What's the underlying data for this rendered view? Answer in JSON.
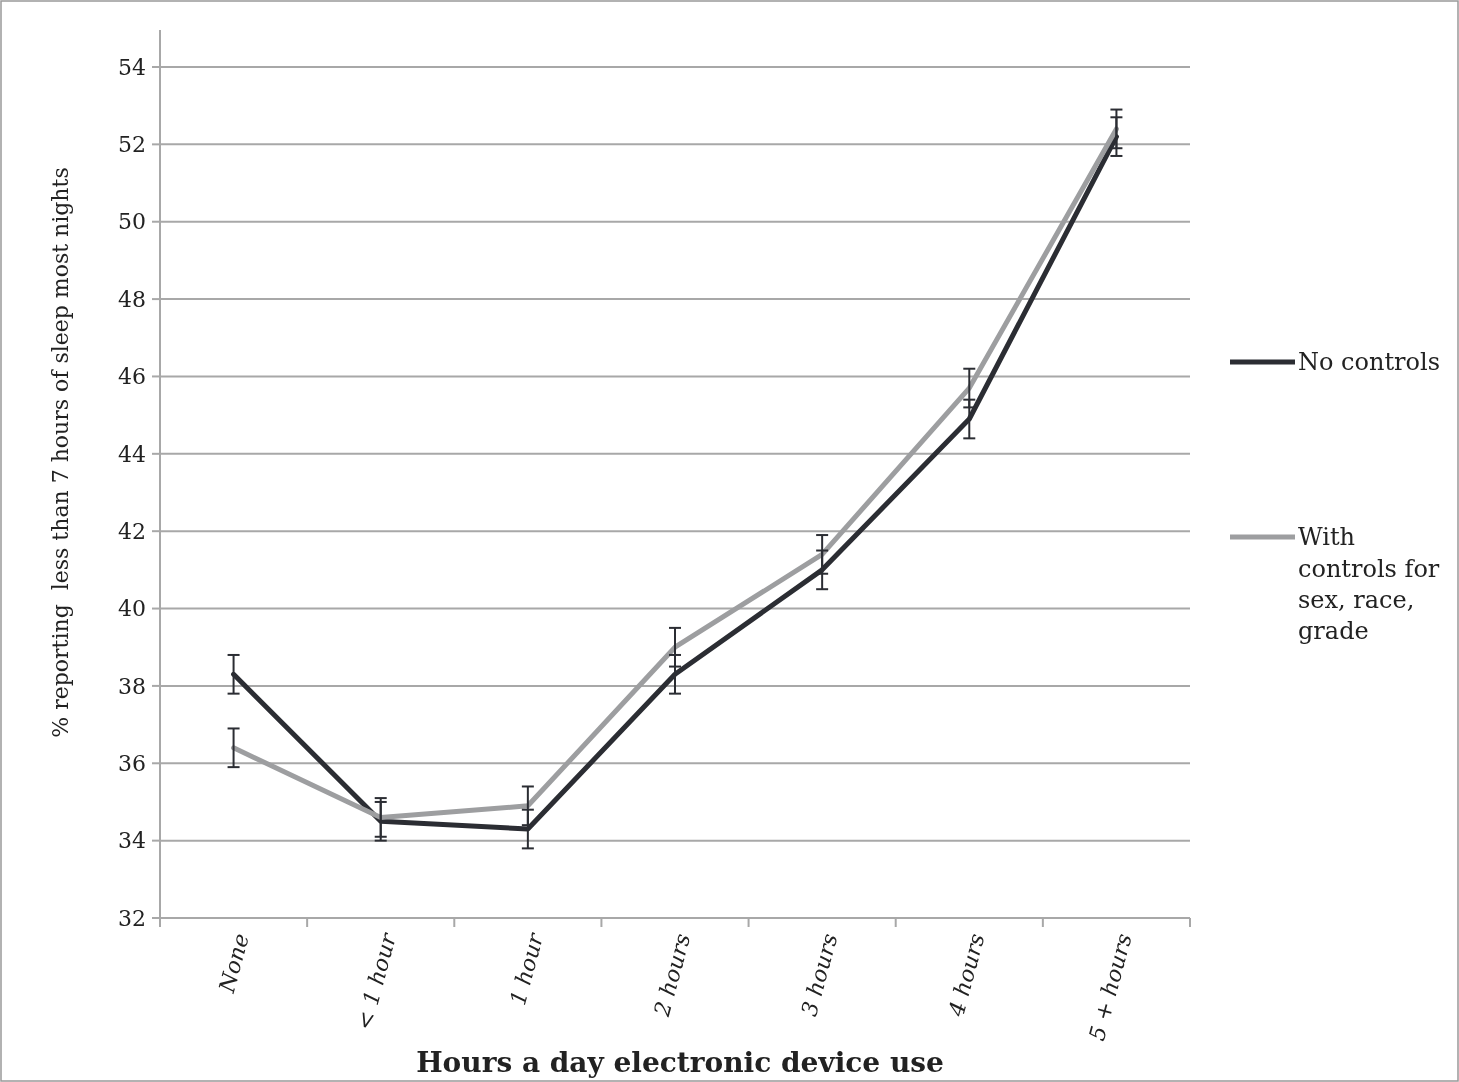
{
  "chart_data": {
    "type": "line",
    "xlabel": "Hours a day electronic device use",
    "ylabel": "% reporting  less than 7 hours of sleep most nights",
    "categories": [
      "None",
      "< 1 hour",
      "1 hour",
      "2 hours",
      "3 hours",
      "4 hours",
      "5 + hours"
    ],
    "series": [
      {
        "name": "No controls",
        "color": "#2b2d33",
        "values": [
          38.3,
          34.5,
          34.3,
          38.3,
          41.0,
          44.9,
          52.2
        ],
        "errors": [
          0.5,
          0.5,
          0.5,
          0.5,
          0.5,
          0.5,
          0.5
        ]
      },
      {
        "name": "With controls for sex, race, grade",
        "color": "#9d9ea0",
        "values": [
          36.4,
          34.6,
          34.9,
          39.0,
          41.4,
          45.7,
          52.4
        ],
        "errors": [
          0.5,
          0.5,
          0.5,
          0.5,
          0.5,
          0.5,
          0.5
        ]
      }
    ],
    "ylim": [
      32,
      54
    ],
    "yticks": [
      32,
      34,
      36,
      38,
      40,
      42,
      44,
      46,
      48,
      50,
      52,
      54
    ],
    "grid": "y",
    "legend": "right",
    "marker": "none",
    "line_style": "solid"
  }
}
